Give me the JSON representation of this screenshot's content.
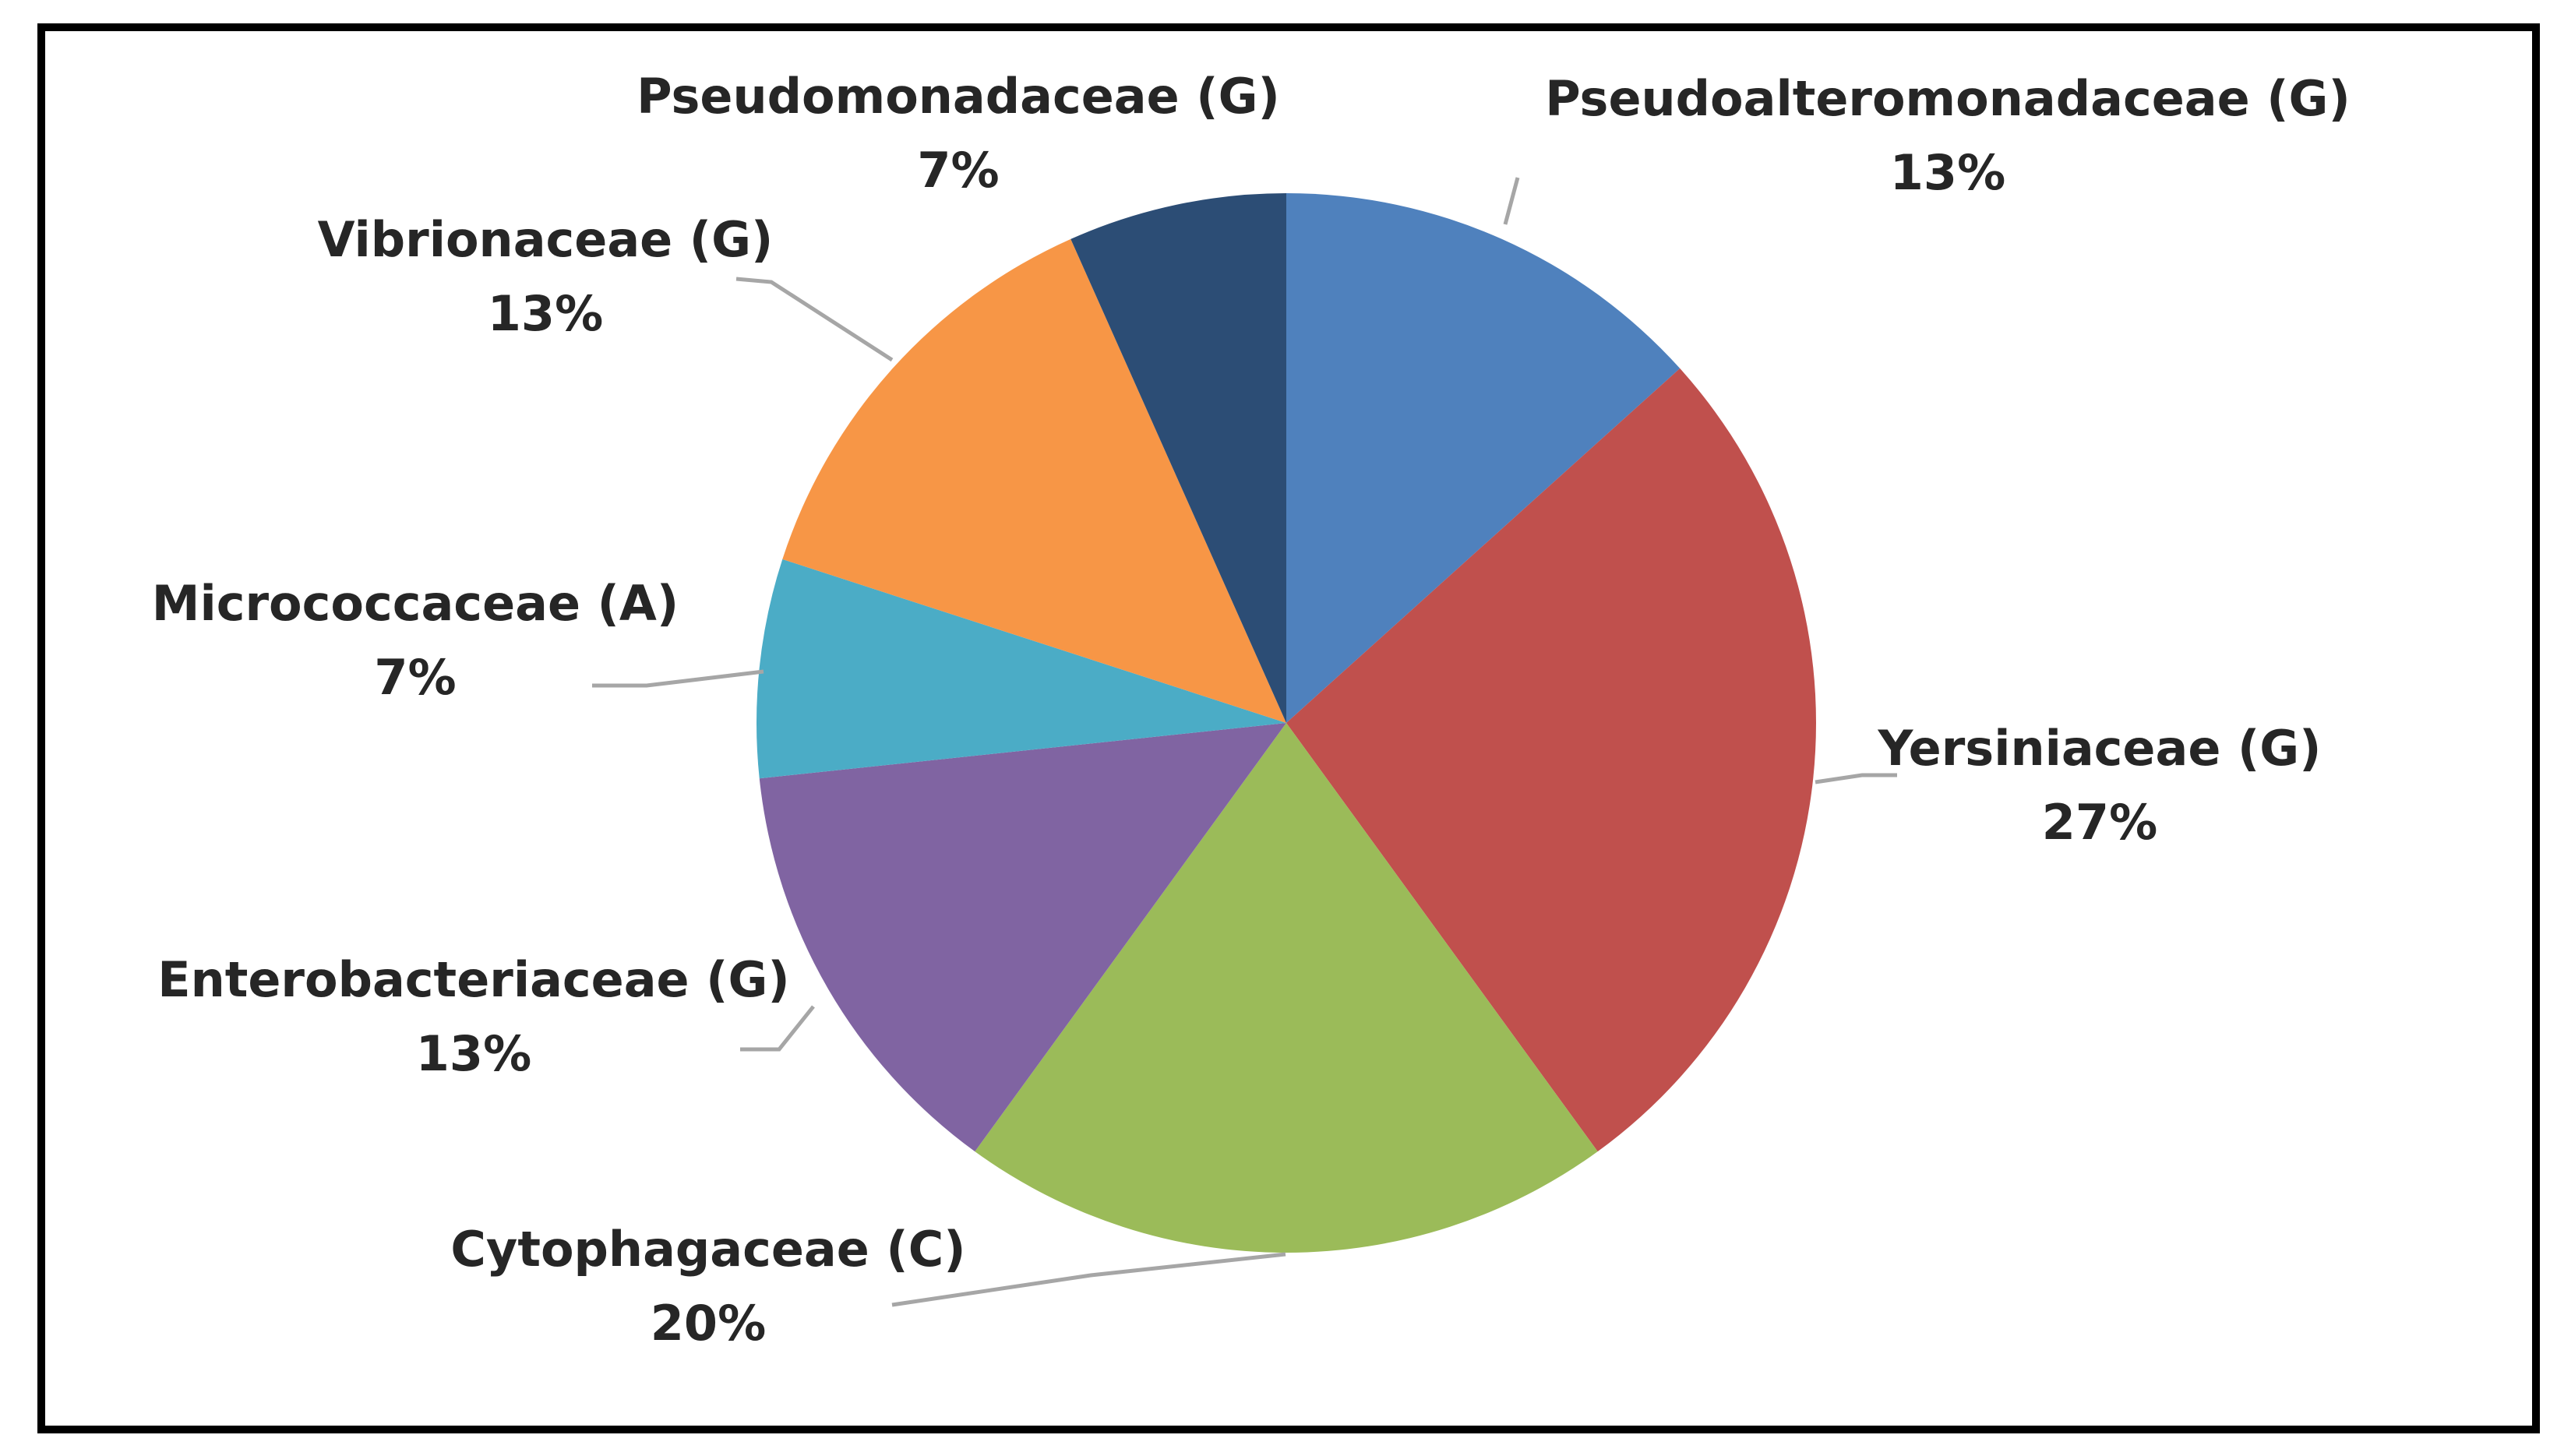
{
  "chart_data": {
    "type": "pie",
    "title": "",
    "start_angle_deg": 0,
    "direction": "clockwise",
    "legend": "none",
    "slices": [
      {
        "label": "Pseudoalteromonadaceae (G)",
        "pct_label": "13%",
        "value": 13.33,
        "color": "#4f81bd"
      },
      {
        "label": "Yersiniaceae (G)",
        "pct_label": "27%",
        "value": 26.67,
        "color": "#c0504d"
      },
      {
        "label": "Cytophagaceae (C)",
        "pct_label": "20%",
        "value": 20.0,
        "color": "#9bbb59"
      },
      {
        "label": "Enterobacteriaceae (G)",
        "pct_label": "13%",
        "value": 13.33,
        "color": "#8064a2"
      },
      {
        "label": "Micrococcaceae (A)",
        "pct_label": "7%",
        "value": 6.67,
        "color": "#4bacc6"
      },
      {
        "label": "Vibrionaceae (G)",
        "pct_label": "13%",
        "value": 13.33,
        "color": "#f79646"
      },
      {
        "label": "Pseudomonadaceae (G)",
        "pct_label": "7%",
        "value": 6.67,
        "color": "#2c4d75"
      }
    ]
  }
}
